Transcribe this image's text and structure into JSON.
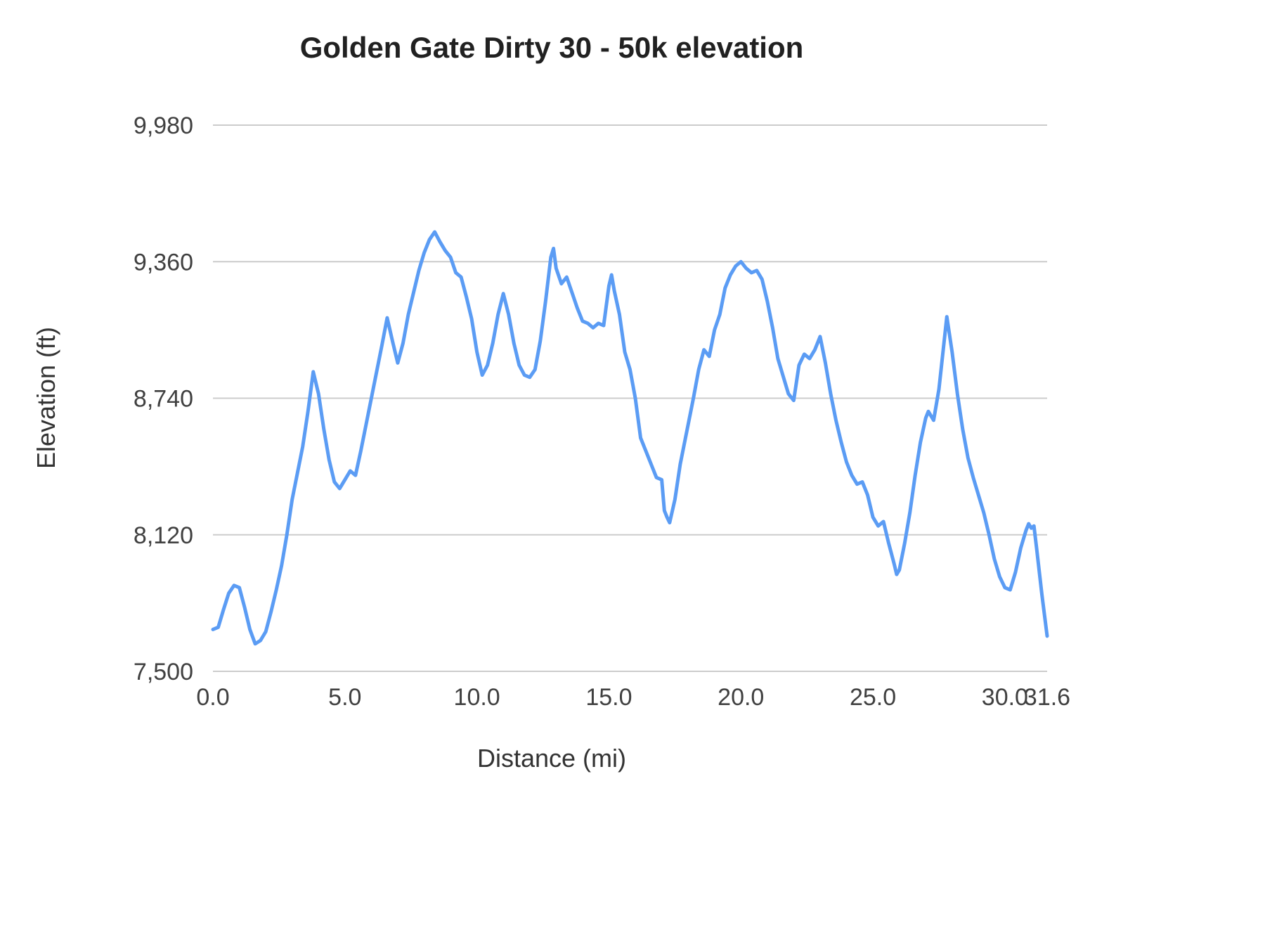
{
  "chart": {
    "title": "Golden Gate Dirty 30 - 50k elevation",
    "xlabel": "Distance (mi)",
    "ylabel": "Elevation (ft)"
  },
  "chart_data": {
    "type": "line",
    "title": "Golden Gate Dirty 30 - 50k elevation",
    "xlabel": "Distance (mi)",
    "ylabel": "Elevation (ft)",
    "xlim": [
      0,
      31.6
    ],
    "ylim": [
      7500,
      9980
    ],
    "x_ticks": [
      0,
      5,
      10,
      15,
      20,
      25,
      30,
      31.6
    ],
    "x_tick_labels": [
      "0.0",
      "5.0",
      "10.0",
      "15.0",
      "20.0",
      "25.0",
      "30.0",
      "31.6"
    ],
    "y_ticks": [
      7500,
      8120,
      8740,
      9360,
      9980
    ],
    "y_tick_labels": [
      "7,500",
      "8,120",
      "8,740",
      "9,360",
      "9,980"
    ],
    "grid": true,
    "legend": "none",
    "line_color": "#5b9cf4",
    "grid_color": "#cccccc",
    "tick_label_color": "#404040",
    "series": [
      {
        "name": "elevation",
        "points": [
          [
            0.0,
            7690
          ],
          [
            0.2,
            7700
          ],
          [
            0.4,
            7780
          ],
          [
            0.6,
            7855
          ],
          [
            0.8,
            7890
          ],
          [
            1.0,
            7880
          ],
          [
            1.2,
            7790
          ],
          [
            1.4,
            7690
          ],
          [
            1.6,
            7625
          ],
          [
            1.8,
            7640
          ],
          [
            2.0,
            7680
          ],
          [
            2.2,
            7770
          ],
          [
            2.4,
            7870
          ],
          [
            2.6,
            7980
          ],
          [
            2.8,
            8120
          ],
          [
            3.0,
            8280
          ],
          [
            3.2,
            8400
          ],
          [
            3.4,
            8520
          ],
          [
            3.6,
            8680
          ],
          [
            3.8,
            8860
          ],
          [
            4.0,
            8760
          ],
          [
            4.2,
            8600
          ],
          [
            4.4,
            8460
          ],
          [
            4.6,
            8360
          ],
          [
            4.8,
            8330
          ],
          [
            5.0,
            8370
          ],
          [
            5.2,
            8410
          ],
          [
            5.4,
            8390
          ],
          [
            5.6,
            8500
          ],
          [
            5.8,
            8620
          ],
          [
            6.0,
            8740
          ],
          [
            6.2,
            8860
          ],
          [
            6.4,
            8980
          ],
          [
            6.6,
            9105
          ],
          [
            6.8,
            9000
          ],
          [
            7.0,
            8900
          ],
          [
            7.2,
            8990
          ],
          [
            7.4,
            9120
          ],
          [
            7.6,
            9220
          ],
          [
            7.8,
            9320
          ],
          [
            8.0,
            9400
          ],
          [
            8.2,
            9460
          ],
          [
            8.4,
            9495
          ],
          [
            8.6,
            9450
          ],
          [
            8.8,
            9410
          ],
          [
            9.0,
            9380
          ],
          [
            9.2,
            9310
          ],
          [
            9.4,
            9290
          ],
          [
            9.6,
            9200
          ],
          [
            9.8,
            9100
          ],
          [
            10.0,
            8950
          ],
          [
            10.2,
            8845
          ],
          [
            10.4,
            8890
          ],
          [
            10.6,
            8990
          ],
          [
            10.8,
            9120
          ],
          [
            11.0,
            9215
          ],
          [
            11.2,
            9120
          ],
          [
            11.4,
            8990
          ],
          [
            11.6,
            8890
          ],
          [
            11.8,
            8845
          ],
          [
            12.0,
            8835
          ],
          [
            12.2,
            8870
          ],
          [
            12.4,
            9000
          ],
          [
            12.6,
            9180
          ],
          [
            12.8,
            9380
          ],
          [
            12.9,
            9420
          ],
          [
            13.0,
            9330
          ],
          [
            13.2,
            9260
          ],
          [
            13.4,
            9290
          ],
          [
            13.6,
            9220
          ],
          [
            13.8,
            9150
          ],
          [
            14.0,
            9090
          ],
          [
            14.2,
            9080
          ],
          [
            14.4,
            9060
          ],
          [
            14.6,
            9080
          ],
          [
            14.8,
            9070
          ],
          [
            15.0,
            9250
          ],
          [
            15.1,
            9300
          ],
          [
            15.2,
            9230
          ],
          [
            15.4,
            9120
          ],
          [
            15.6,
            8950
          ],
          [
            15.8,
            8870
          ],
          [
            16.0,
            8740
          ],
          [
            16.2,
            8560
          ],
          [
            16.4,
            8500
          ],
          [
            16.6,
            8440
          ],
          [
            16.8,
            8380
          ],
          [
            17.0,
            8370
          ],
          [
            17.1,
            8230
          ],
          [
            17.2,
            8200
          ],
          [
            17.3,
            8175
          ],
          [
            17.5,
            8280
          ],
          [
            17.7,
            8440
          ],
          [
            18.0,
            8620
          ],
          [
            18.2,
            8740
          ],
          [
            18.4,
            8870
          ],
          [
            18.6,
            8960
          ],
          [
            18.8,
            8930
          ],
          [
            19.0,
            9050
          ],
          [
            19.2,
            9120
          ],
          [
            19.4,
            9240
          ],
          [
            19.6,
            9300
          ],
          [
            19.8,
            9340
          ],
          [
            20.0,
            9360
          ],
          [
            20.2,
            9330
          ],
          [
            20.4,
            9310
          ],
          [
            20.6,
            9320
          ],
          [
            20.8,
            9280
          ],
          [
            21.0,
            9180
          ],
          [
            21.2,
            9060
          ],
          [
            21.4,
            8920
          ],
          [
            21.6,
            8840
          ],
          [
            21.8,
            8760
          ],
          [
            22.0,
            8730
          ],
          [
            22.2,
            8890
          ],
          [
            22.4,
            8940
          ],
          [
            22.6,
            8920
          ],
          [
            22.8,
            8960
          ],
          [
            23.0,
            9020
          ],
          [
            23.2,
            8900
          ],
          [
            23.4,
            8760
          ],
          [
            23.6,
            8640
          ],
          [
            23.8,
            8540
          ],
          [
            24.0,
            8450
          ],
          [
            24.2,
            8390
          ],
          [
            24.4,
            8350
          ],
          [
            24.6,
            8360
          ],
          [
            24.8,
            8300
          ],
          [
            25.0,
            8200
          ],
          [
            25.2,
            8160
          ],
          [
            25.4,
            8180
          ],
          [
            25.6,
            8080
          ],
          [
            25.8,
            7990
          ],
          [
            25.9,
            7940
          ],
          [
            26.0,
            7960
          ],
          [
            26.2,
            8080
          ],
          [
            26.4,
            8220
          ],
          [
            26.6,
            8390
          ],
          [
            26.8,
            8540
          ],
          [
            27.0,
            8650
          ],
          [
            27.1,
            8680
          ],
          [
            27.3,
            8640
          ],
          [
            27.5,
            8780
          ],
          [
            27.7,
            9000
          ],
          [
            27.8,
            9110
          ],
          [
            28.0,
            8950
          ],
          [
            28.2,
            8760
          ],
          [
            28.4,
            8600
          ],
          [
            28.6,
            8470
          ],
          [
            28.8,
            8380
          ],
          [
            29.0,
            8300
          ],
          [
            29.2,
            8220
          ],
          [
            29.4,
            8120
          ],
          [
            29.6,
            8010
          ],
          [
            29.8,
            7930
          ],
          [
            30.0,
            7880
          ],
          [
            30.2,
            7870
          ],
          [
            30.4,
            7950
          ],
          [
            30.6,
            8060
          ],
          [
            30.8,
            8140
          ],
          [
            30.9,
            8170
          ],
          [
            31.0,
            8150
          ],
          [
            31.1,
            8160
          ],
          [
            31.2,
            8060
          ],
          [
            31.4,
            7850
          ],
          [
            31.6,
            7660
          ]
        ]
      }
    ]
  }
}
